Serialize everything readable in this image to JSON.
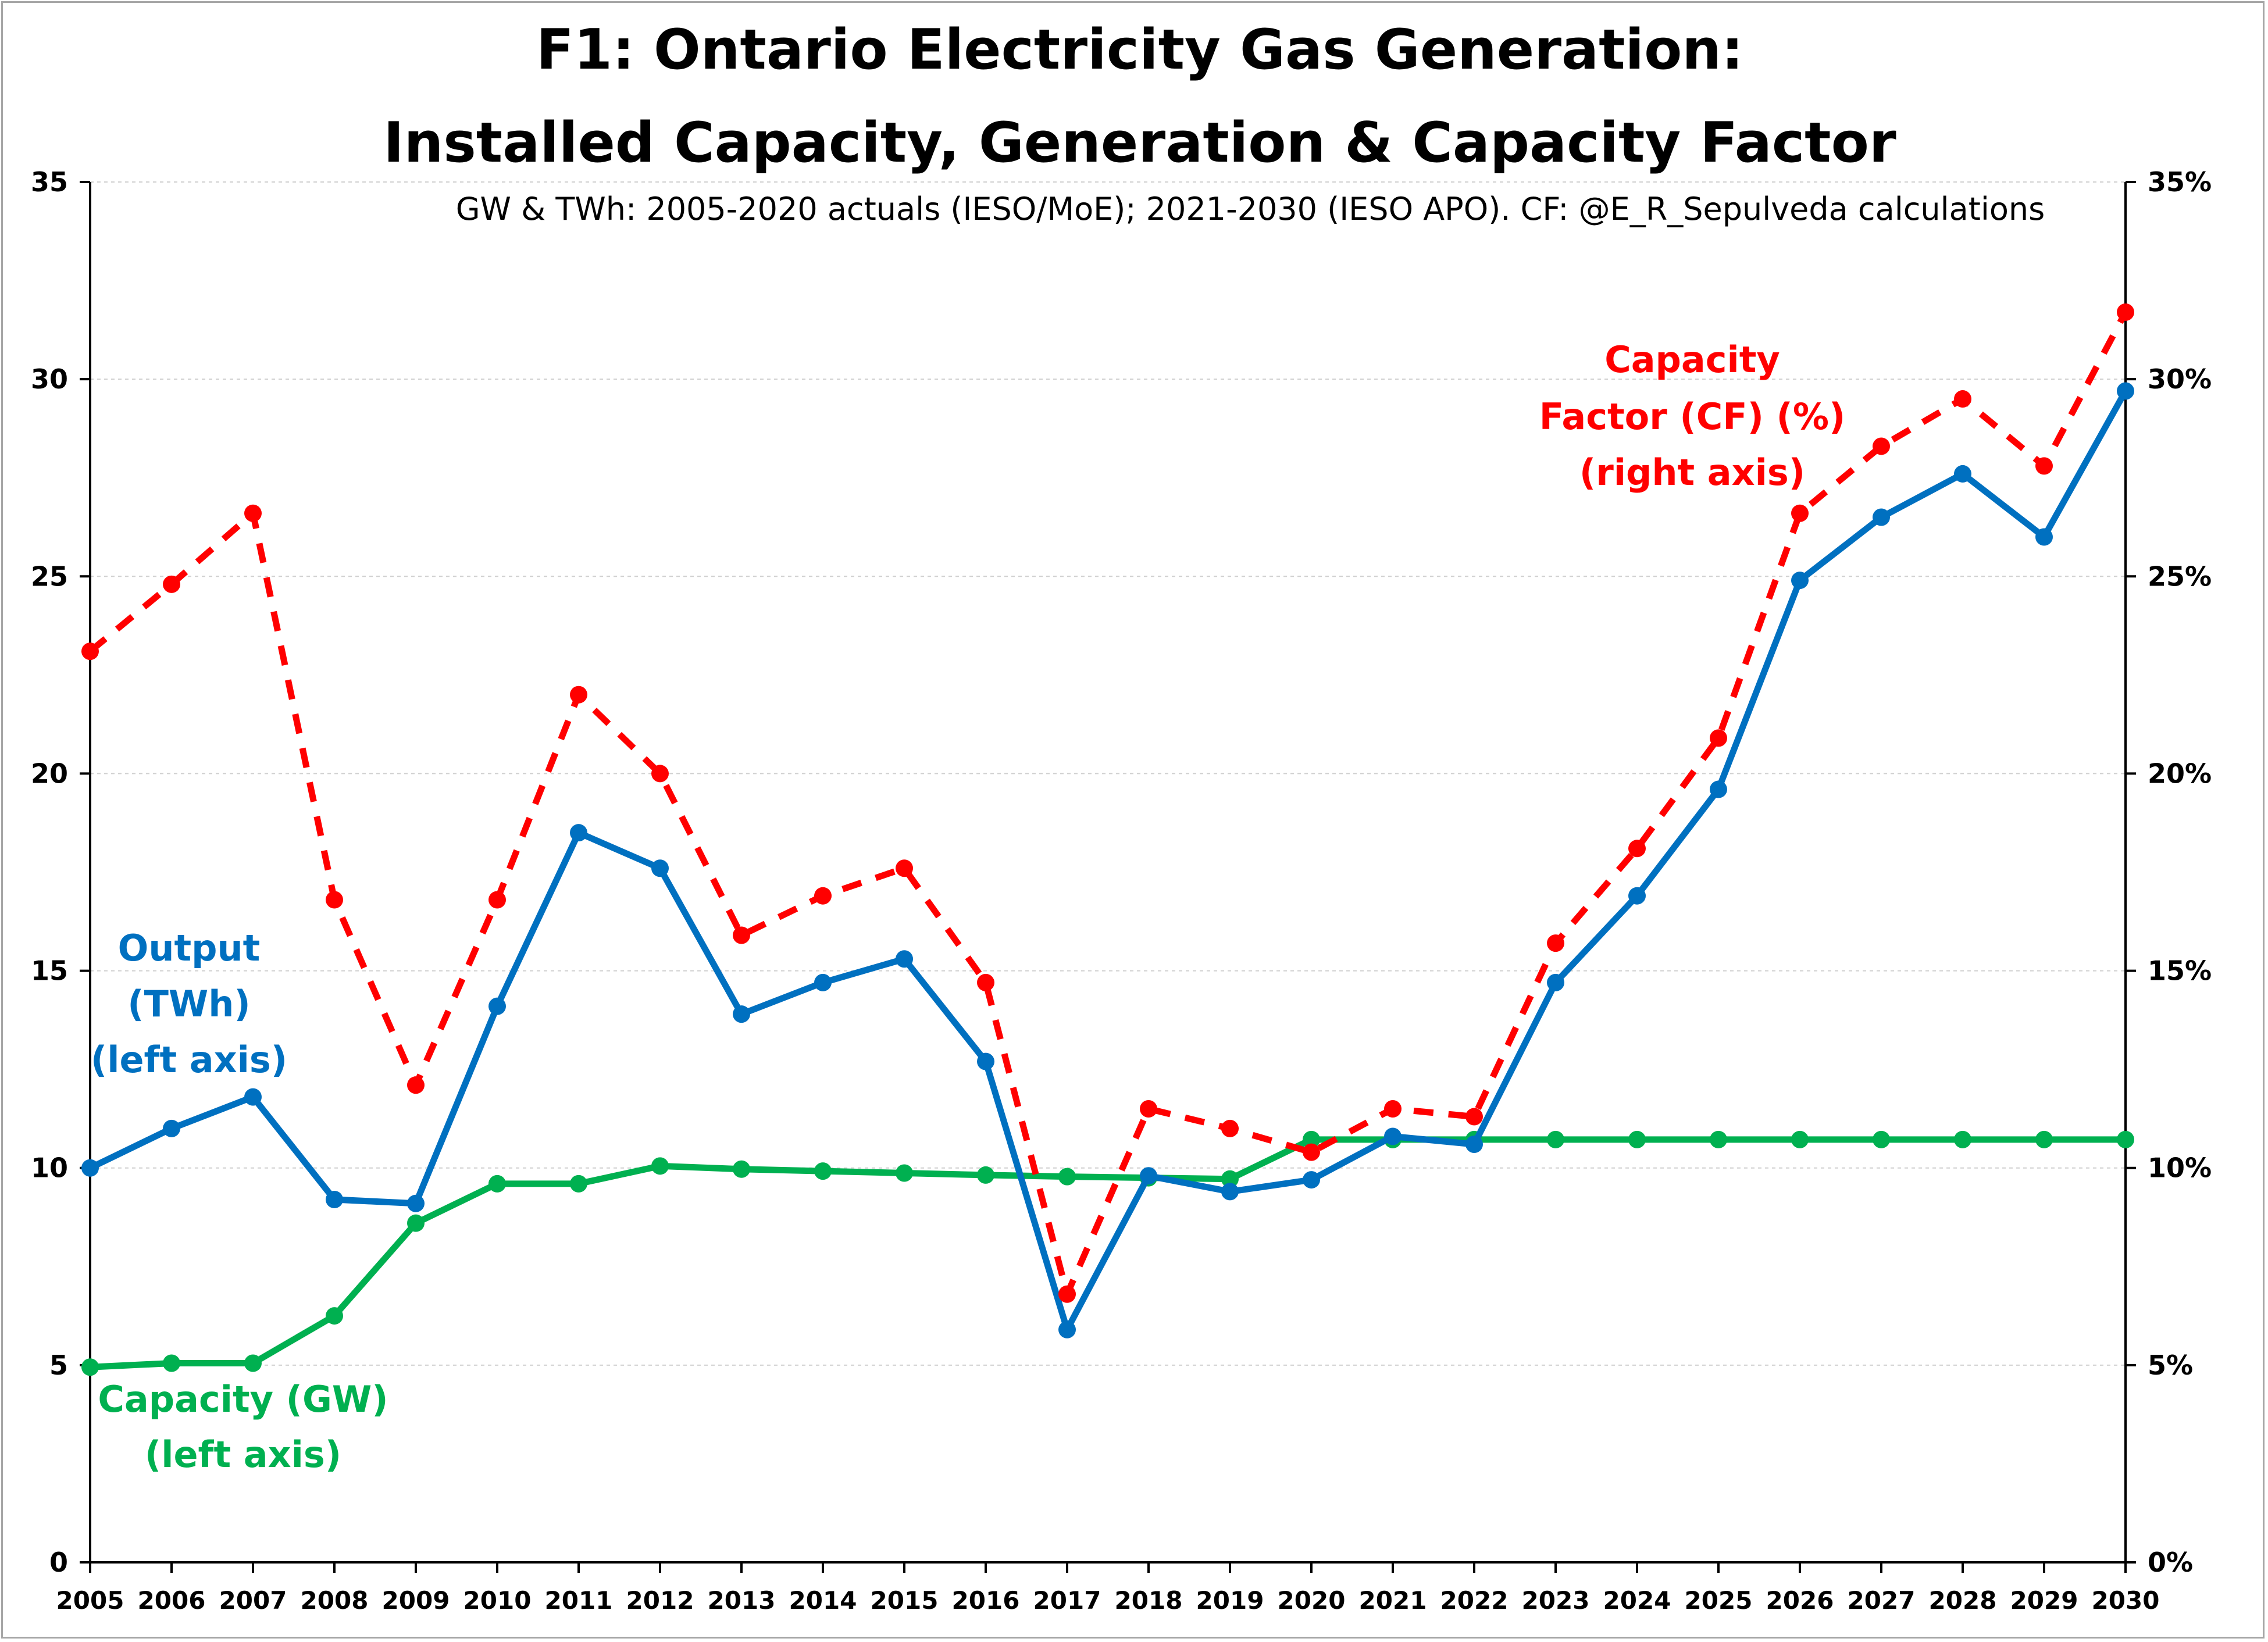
{
  "chart_data": {
    "type": "line",
    "title_line1": "F1: Ontario Electricity Gas Generation:",
    "title_line2": "Installed Capacity, Generation & Capacity Factor",
    "subtitle": "GW & TWh: 2005-2020 actuals (IESO/MoE); 2021-2030 (IESO APO). CF: @E_R_Sepulveda calculations",
    "x": [
      "2005",
      "2006",
      "2007",
      "2008",
      "2009",
      "2010",
      "2011",
      "2012",
      "2013",
      "2014",
      "2015",
      "2016",
      "2017",
      "2018",
      "2019",
      "2020",
      "2021",
      "2022",
      "2023",
      "2024",
      "2025",
      "2026",
      "2027",
      "2028",
      "2029",
      "2030"
    ],
    "left_axis": {
      "ylim": [
        0,
        35
      ],
      "ticks": [
        "0",
        "5",
        "10",
        "15",
        "20",
        "25",
        "30",
        "35"
      ]
    },
    "right_axis": {
      "ylim": [
        0,
        35
      ],
      "ticks": [
        "0%",
        "5%",
        "10%",
        "15%",
        "20%",
        "25%",
        "30%",
        "35%"
      ]
    },
    "grid": true,
    "series": [
      {
        "key": "output",
        "axis": "left",
        "color": "#0070c0",
        "dashed": false,
        "values": [
          10.0,
          11.0,
          11.8,
          9.2,
          9.1,
          14.1,
          18.5,
          17.6,
          13.9,
          14.7,
          15.3,
          12.7,
          5.9,
          9.8,
          9.4,
          9.7,
          10.8,
          10.6,
          14.7,
          16.9,
          19.6,
          24.9,
          26.5,
          27.6,
          26.0,
          29.7
        ]
      },
      {
        "key": "capacity",
        "axis": "left",
        "color": "#00b050",
        "dashed": false,
        "values": [
          4.95,
          5.05,
          5.05,
          6.25,
          8.6,
          9.6,
          9.6,
          10.05,
          9.97,
          9.92,
          9.87,
          9.82,
          9.78,
          9.75,
          9.72,
          10.72,
          10.72,
          10.72,
          10.72,
          10.72,
          10.72,
          10.72,
          10.72,
          10.72,
          10.72,
          10.72
        ]
      },
      {
        "key": "cf",
        "axis": "right",
        "color": "#ff0000",
        "dashed": true,
        "values": [
          23.1,
          24.8,
          26.6,
          16.8,
          12.1,
          16.8,
          22.0,
          20.0,
          15.9,
          16.9,
          17.6,
          14.7,
          6.8,
          11.5,
          11.0,
          10.4,
          11.5,
          11.3,
          15.7,
          18.1,
          20.9,
          26.6,
          28.3,
          29.5,
          27.8,
          31.7
        ]
      }
    ],
    "annotations": {
      "output": [
        "Output",
        "(TWh)",
        "(left axis)"
      ],
      "capacity": [
        "Capacity (GW)",
        "(left axis)"
      ],
      "cf": [
        "Capacity",
        "Factor (CF)  (%)",
        "(right axis)"
      ]
    }
  }
}
